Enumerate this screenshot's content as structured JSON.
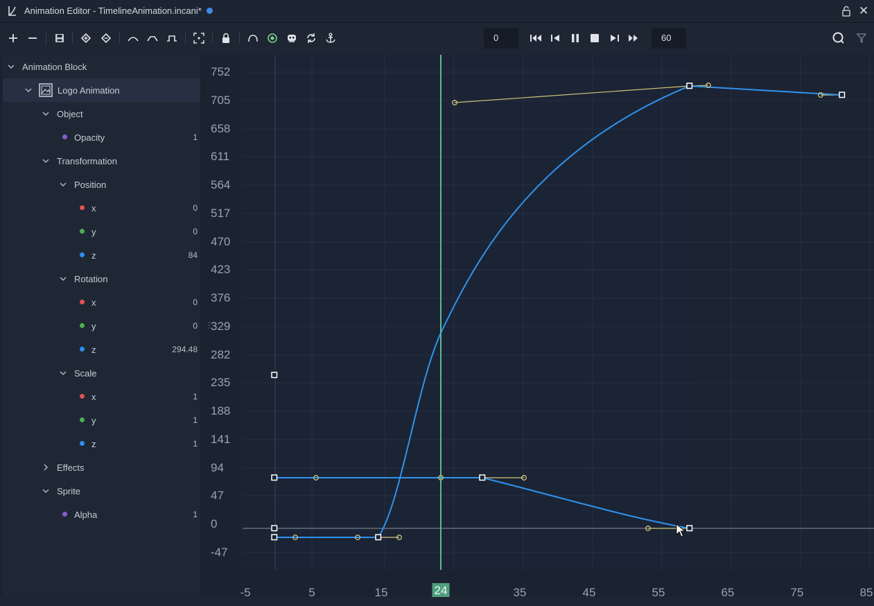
{
  "window": {
    "title": "Animation Editor - TimelineAnimation.incani*",
    "unsaved_indicator_color": "#3d8ee8"
  },
  "toolbar": {
    "icons": [
      "add-icon",
      "remove-icon",
      "save-icon",
      "add-keyframe-icon",
      "remove-keyframe-icon",
      "ease-in-icon",
      "ease-out-icon",
      "step-icon",
      "fit-view-icon",
      "lock-icon",
      "curve-icon",
      "visibility-icon",
      "ghost-icon",
      "loop-icon",
      "anchor-icon",
      "skip-start-icon",
      "step-back-icon",
      "pause-icon",
      "stop-icon",
      "step-forward-icon",
      "skip-end-icon",
      "search-icon",
      "filter-icon"
    ],
    "start_frame": "0",
    "end_frame": "60"
  },
  "tree": {
    "root": "Animation Block",
    "object": "Logo Animation",
    "groups": {
      "object": "Object",
      "transformation": "Transformation",
      "position": "Position",
      "rotation": "Rotation",
      "scale": "Scale",
      "effects": "Effects",
      "sprite": "Sprite"
    },
    "opacity": {
      "label": "Opacity",
      "value": "1"
    },
    "position": {
      "x": "0",
      "y": "0",
      "z": "84"
    },
    "rotation": {
      "x": "0",
      "y": "0",
      "z": "294.48"
    },
    "scale": {
      "x": "1",
      "y": "1",
      "z": "1"
    },
    "alpha": {
      "label": "Alpha",
      "value": "1"
    },
    "axis_labels": {
      "x": "x",
      "y": "y",
      "z": "z"
    },
    "channel_colors": {
      "x": "#e05252",
      "y": "#4caf50",
      "z": "#2f8ef0",
      "property": "#8a5bd1"
    }
  },
  "graph": {
    "y_ticks": [
      "752",
      "705",
      "658",
      "611",
      "564",
      "517",
      "470",
      "423",
      "376",
      "329",
      "282",
      "235",
      "188",
      "141",
      "94",
      "47",
      "0",
      "-47"
    ],
    "x_ticks": [
      "-5",
      "5",
      "15",
      "35",
      "45",
      "55",
      "65",
      "75",
      "85"
    ],
    "current_frame": "24",
    "colors": {
      "curve": "#2e93f0",
      "tangent": "#d2c37a",
      "playhead": "#5db89a",
      "playhead_label_bg": "#4f9e7f"
    }
  }
}
